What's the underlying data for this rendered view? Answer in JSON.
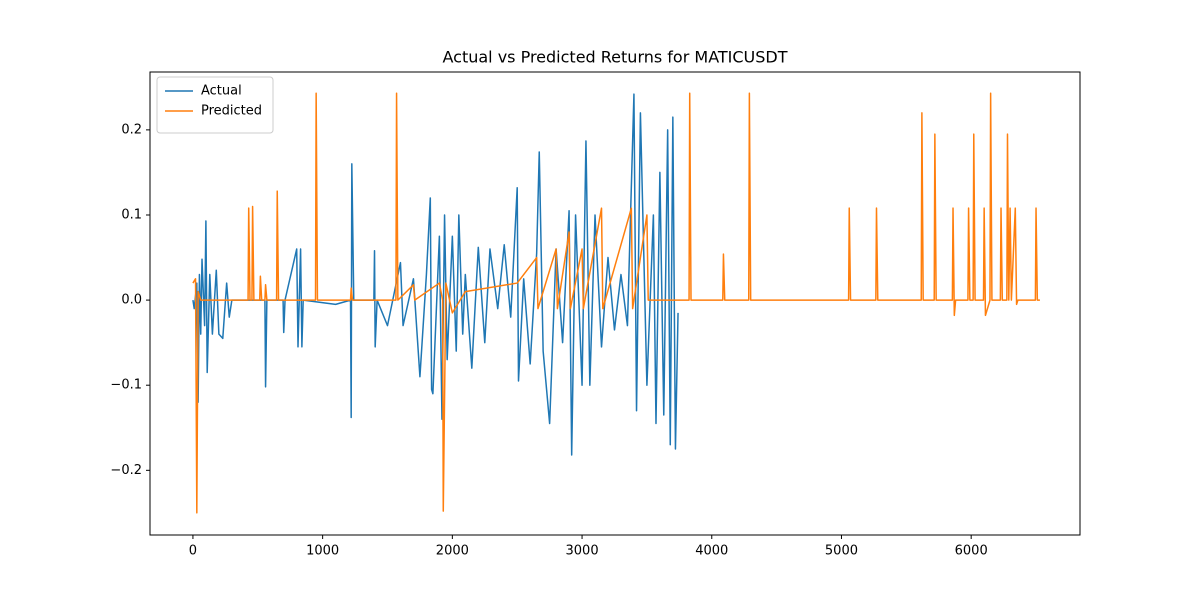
{
  "chart_data": {
    "type": "line",
    "title": "Actual vs Predicted Returns for MATICUSDT",
    "xlim": [
      -331,
      6839
    ],
    "xticks": [
      0,
      1000,
      2000,
      3000,
      4000,
      5000,
      6000
    ],
    "ylim": [
      -0.276,
      0.268
    ],
    "yticks": [
      {
        "value": -0.2,
        "label": "−0.2"
      },
      {
        "value": -0.1,
        "label": "−0.1"
      },
      {
        "value": 0,
        "label": "0.0"
      },
      0.1,
      0.2
    ],
    "grid": false,
    "legend": "upper left",
    "series": [
      {
        "name": "Actual",
        "color": "#1f77b4",
        "x": [
          0,
          10,
          30,
          40,
          50,
          60,
          70,
          90,
          100,
          110,
          130,
          150,
          180,
          200,
          230,
          260,
          280,
          300,
          555,
          560,
          570,
          695,
          700,
          710,
          800,
          810,
          830,
          840,
          850,
          1100,
          1215,
          1220,
          1225,
          1240,
          1395,
          1400,
          1405,
          1420,
          1500,
          1600,
          1620,
          1700,
          1750,
          1800,
          1830,
          1840,
          1850,
          1900,
          1920,
          1940,
          1960,
          2000,
          2030,
          2050,
          2080,
          2100,
          2150,
          2200,
          2250,
          2290,
          2350,
          2400,
          2450,
          2500,
          2510,
          2550,
          2600,
          2650,
          2670,
          2700,
          2750,
          2800,
          2850,
          2900,
          2920,
          2950,
          3000,
          3030,
          3060,
          3100,
          3150,
          3200,
          3250,
          3300,
          3350,
          3400,
          3420,
          3450,
          3500,
          3550,
          3570,
          3600,
          3630,
          3660,
          3680,
          3700,
          3720,
          3740
        ],
        "values": [
          0,
          -0.01,
          0.02,
          -0.12,
          0.03,
          -0.04,
          0.048,
          -0.03,
          0.093,
          -0.085,
          0.03,
          -0.04,
          0.035,
          -0.04,
          -0.045,
          0.02,
          -0.02,
          0,
          0,
          -0.102,
          0,
          0,
          -0.038,
          0,
          0.06,
          -0.055,
          0.06,
          -0.055,
          0,
          -0.005,
          0,
          -0.138,
          0.16,
          0,
          0,
          0.058,
          -0.055,
          0,
          -0.03,
          0.044,
          -0.03,
          0.025,
          -0.09,
          0.03,
          0.12,
          -0.105,
          -0.11,
          0.075,
          -0.14,
          0.1,
          -0.07,
          0.075,
          -0.06,
          0.1,
          -0.04,
          0.03,
          -0.08,
          0.062,
          -0.05,
          0.06,
          -0.01,
          0.065,
          -0.02,
          0.132,
          -0.095,
          0.025,
          -0.075,
          0.055,
          0.174,
          -0.06,
          -0.145,
          0.06,
          -0.05,
          0.105,
          -0.182,
          0.1,
          -0.1,
          0.187,
          -0.1,
          0.1,
          -0.055,
          0.05,
          -0.035,
          0.03,
          -0.03,
          0.242,
          -0.13,
          0.22,
          -0.1,
          0.1,
          -0.145,
          0.15,
          -0.135,
          0.2,
          -0.17,
          0.215,
          -0.175,
          -0.015
        ]
      },
      {
        "name": "Predicted",
        "color": "#ff7f0e",
        "x": [
          0,
          20,
          30,
          40,
          60,
          425,
          430,
          440,
          455,
          460,
          470,
          515,
          520,
          530,
          555,
          560,
          570,
          645,
          650,
          660,
          945,
          950,
          960,
          1215,
          1220,
          1230,
          1565,
          1570,
          1580,
          1700,
          1710,
          1900,
          1925,
          1930,
          1950,
          2000,
          2100,
          2500,
          2650,
          2660,
          2800,
          2810,
          2900,
          2910,
          3000,
          3010,
          3150,
          3160,
          3380,
          3390,
          3500,
          3510,
          3825,
          3830,
          3840,
          4085,
          4090,
          4100,
          4285,
          4290,
          4300,
          5055,
          5060,
          5070,
          5265,
          5270,
          5280,
          5615,
          5620,
          5630,
          5715,
          5720,
          5730,
          5855,
          5860,
          5870,
          5880,
          5975,
          5980,
          5990,
          6015,
          6020,
          6030,
          6095,
          6100,
          6110,
          6145,
          6150,
          6160,
          6225,
          6230,
          6240,
          6275,
          6280,
          6290,
          6300,
          6310,
          6340,
          6350,
          6360,
          6495,
          6500,
          6510,
          6530
        ],
        "values": [
          0.02,
          0.025,
          -0.25,
          0.01,
          0,
          0,
          0.108,
          0,
          0,
          0.11,
          0,
          0,
          0.028,
          0,
          0,
          0.018,
          0,
          0,
          0.128,
          0,
          0,
          0.243,
          0,
          0,
          0.014,
          0,
          0,
          0.243,
          0,
          0.018,
          0,
          0.02,
          0,
          -0.248,
          0.02,
          -0.015,
          0.01,
          0.02,
          0.05,
          -0.01,
          0.06,
          -0.01,
          0.08,
          -0.01,
          0.06,
          -0.01,
          0.108,
          -0.01,
          0.108,
          -0.01,
          0.1,
          0,
          0,
          0.243,
          0,
          0,
          0.054,
          0,
          0,
          0.243,
          0,
          0,
          0.108,
          0,
          0,
          0.108,
          0,
          0,
          0.22,
          0,
          0,
          0.195,
          0,
          0,
          0.108,
          -0.018,
          0,
          0,
          0.108,
          0,
          0,
          0.195,
          0,
          0,
          0.108,
          -0.018,
          0,
          0.243,
          0,
          0,
          0.108,
          0,
          0,
          0.195,
          0,
          0.108,
          0,
          0.108,
          -0.005,
          0,
          0,
          0.108,
          0,
          0
        ]
      }
    ]
  }
}
